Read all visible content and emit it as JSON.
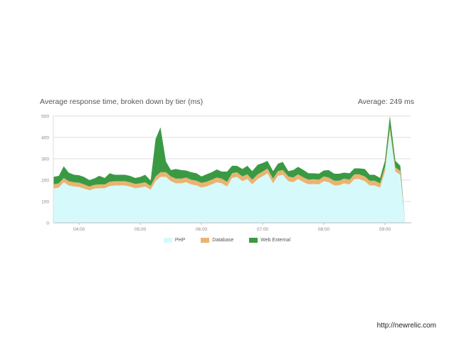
{
  "header": {
    "title": "Average response time, broken down by tier (ms)",
    "average": "Average: 249 ms"
  },
  "footer": {
    "link": "http://newrelic.com"
  },
  "colors": {
    "php": "#d6fafb",
    "database": "#e9b472",
    "web_external": "#3a9a44",
    "grid": "#dddddd"
  },
  "chart_data": {
    "type": "area",
    "stacked": true,
    "title": "Average response time, broken down by tier (ms)",
    "ylim": [
      0,
      500
    ],
    "yticks": [
      0,
      100,
      200,
      300,
      400,
      500
    ],
    "ytick_labels": [
      "0",
      "100",
      "200",
      "300",
      "400",
      "500"
    ],
    "xlim": [
      3.58,
      9.43
    ],
    "xticks": [
      4,
      5,
      6,
      7,
      8,
      9
    ],
    "xtick_labels": [
      "04:00",
      "05:00",
      "06:00",
      "07:00",
      "08:00",
      "09:00"
    ],
    "grid": true,
    "legend_position": "bottom",
    "x": [
      3.58,
      3.67,
      3.75,
      3.83,
      3.92,
      4.0,
      4.08,
      4.17,
      4.25,
      4.33,
      4.42,
      4.5,
      4.58,
      4.67,
      4.75,
      4.83,
      4.92,
      5.0,
      5.08,
      5.17,
      5.25,
      5.33,
      5.42,
      5.5,
      5.58,
      5.67,
      5.75,
      5.83,
      5.92,
      6.0,
      6.08,
      6.17,
      6.25,
      6.33,
      6.42,
      6.5,
      6.58,
      6.67,
      6.75,
      6.83,
      6.92,
      7.0,
      7.08,
      7.17,
      7.25,
      7.33,
      7.42,
      7.5,
      7.58,
      7.67,
      7.75,
      7.83,
      7.92,
      8.0,
      8.08,
      8.17,
      8.25,
      8.33,
      8.42,
      8.5,
      8.58,
      8.67,
      8.75,
      8.83,
      8.92,
      9.0,
      9.08,
      9.17,
      9.25,
      9.33,
      9.37,
      9.43
    ],
    "series": [
      {
        "name": "PHP",
        "values": [
          160,
          165,
          190,
          175,
          170,
          168,
          160,
          152,
          160,
          162,
          162,
          172,
          175,
          175,
          175,
          170,
          162,
          165,
          170,
          155,
          195,
          215,
          215,
          195,
          185,
          185,
          190,
          180,
          175,
          165,
          170,
          180,
          190,
          185,
          170,
          210,
          215,
          195,
          205,
          180,
          205,
          218,
          232,
          185,
          220,
          225,
          195,
          190,
          205,
          190,
          180,
          182,
          180,
          195,
          190,
          175,
          175,
          185,
          180,
          205,
          205,
          195,
          175,
          175,
          165,
          240,
          430,
          240,
          225,
          0,
          0,
          0
        ]
      },
      {
        "name": "Database",
        "values": [
          20,
          20,
          20,
          20,
          20,
          20,
          20,
          18,
          18,
          18,
          18,
          20,
          20,
          20,
          20,
          20,
          20,
          20,
          20,
          18,
          22,
          22,
          22,
          22,
          22,
          22,
          22,
          22,
          22,
          22,
          22,
          22,
          22,
          22,
          22,
          22,
          22,
          22,
          22,
          22,
          22,
          22,
          22,
          22,
          22,
          22,
          22,
          22,
          22,
          22,
          22,
          22,
          22,
          22,
          22,
          22,
          22,
          22,
          22,
          22,
          22,
          22,
          22,
          22,
          20,
          22,
          20,
          20,
          18,
          0,
          0,
          0
        ]
      },
      {
        "name": "Web External",
        "values": [
          35,
          35,
          55,
          40,
          35,
          35,
          35,
          30,
          30,
          40,
          30,
          40,
          30,
          30,
          30,
          30,
          28,
          30,
          35,
          25,
          175,
          210,
          50,
          30,
          45,
          40,
          33,
          35,
          35,
          30,
          35,
          35,
          38,
          33,
          48,
          35,
          30,
          35,
          40,
          40,
          45,
          40,
          36,
          35,
          35,
          38,
          25,
          35,
          35,
          35,
          30,
          28,
          28,
          28,
          35,
          33,
          33,
          28,
          30,
          28,
          28,
          35,
          28,
          28,
          25,
          30,
          50,
          30,
          25,
          0,
          0,
          0
        ]
      }
    ],
    "legend": [
      "PHP",
      "Database",
      "Web External"
    ]
  }
}
